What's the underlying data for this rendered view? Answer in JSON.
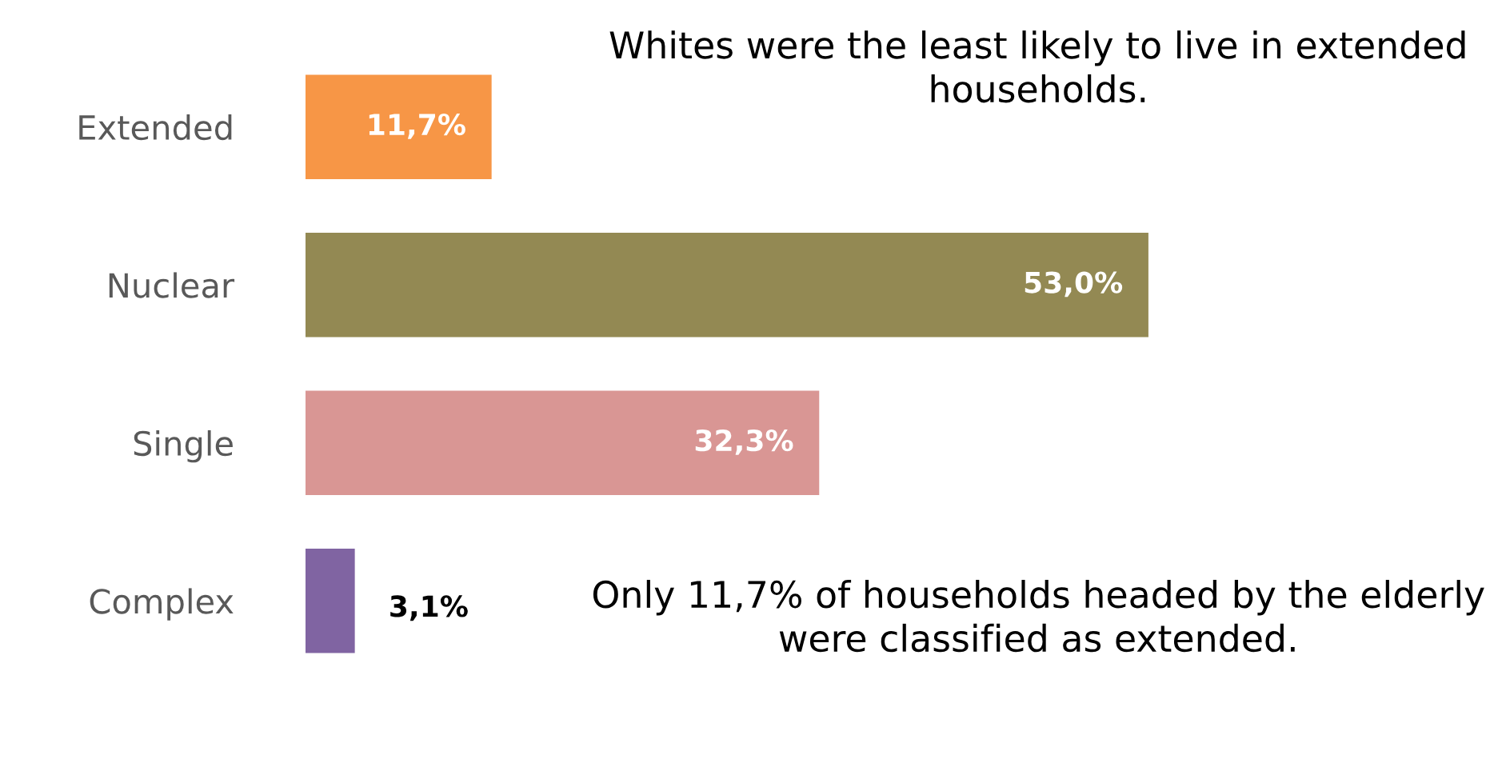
{
  "chart_data": {
    "type": "bar",
    "orientation": "horizontal",
    "categories": [
      "Extended",
      "Nuclear",
      "Single",
      "Complex"
    ],
    "values": [
      11.7,
      53.0,
      32.3,
      3.1
    ],
    "colors": [
      "#f79646",
      "#938953",
      "#d99694",
      "#8064a2"
    ],
    "value_labels": [
      "11,7%",
      "53,0%",
      "32,3%",
      "3,1%"
    ],
    "annotations": [
      "Whites were the least likely to live in extended households.",
      "Only 11,7% of households headed by the elderly were classified as extended."
    ]
  }
}
